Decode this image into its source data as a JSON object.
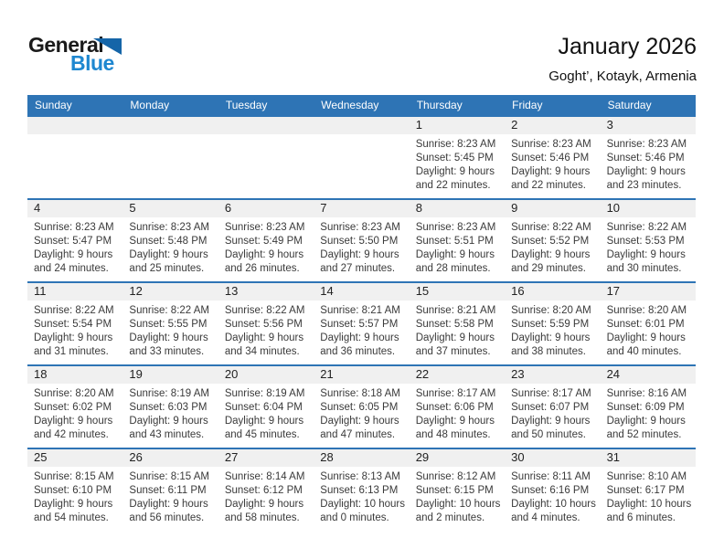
{
  "logo": {
    "part1": "General",
    "part2": "Blue"
  },
  "header": {
    "title": "January 2026",
    "subtitle": "Goght’, Kotayk, Armenia"
  },
  "colors": {
    "header_blue": "#2E74B5",
    "row_separator_blue": "#2E74B5",
    "day_band_gray": "#F0F0F0",
    "logo_text_blue": "#1E87D0",
    "logo_triangle_blue": "#1565A8"
  },
  "calendar": {
    "weekdays": [
      "Sunday",
      "Monday",
      "Tuesday",
      "Wednesday",
      "Thursday",
      "Friday",
      "Saturday"
    ],
    "weeks": [
      [
        {},
        {},
        {},
        {},
        {
          "day": "1",
          "sunrise": "Sunrise: 8:23 AM",
          "sunset": "Sunset: 5:45 PM",
          "daylight1": "Daylight: 9 hours",
          "daylight2": "and 22 minutes."
        },
        {
          "day": "2",
          "sunrise": "Sunrise: 8:23 AM",
          "sunset": "Sunset: 5:46 PM",
          "daylight1": "Daylight: 9 hours",
          "daylight2": "and 22 minutes."
        },
        {
          "day": "3",
          "sunrise": "Sunrise: 8:23 AM",
          "sunset": "Sunset: 5:46 PM",
          "daylight1": "Daylight: 9 hours",
          "daylight2": "and 23 minutes."
        }
      ],
      [
        {
          "day": "4",
          "sunrise": "Sunrise: 8:23 AM",
          "sunset": "Sunset: 5:47 PM",
          "daylight1": "Daylight: 9 hours",
          "daylight2": "and 24 minutes."
        },
        {
          "day": "5",
          "sunrise": "Sunrise: 8:23 AM",
          "sunset": "Sunset: 5:48 PM",
          "daylight1": "Daylight: 9 hours",
          "daylight2": "and 25 minutes."
        },
        {
          "day": "6",
          "sunrise": "Sunrise: 8:23 AM",
          "sunset": "Sunset: 5:49 PM",
          "daylight1": "Daylight: 9 hours",
          "daylight2": "and 26 minutes."
        },
        {
          "day": "7",
          "sunrise": "Sunrise: 8:23 AM",
          "sunset": "Sunset: 5:50 PM",
          "daylight1": "Daylight: 9 hours",
          "daylight2": "and 27 minutes."
        },
        {
          "day": "8",
          "sunrise": "Sunrise: 8:23 AM",
          "sunset": "Sunset: 5:51 PM",
          "daylight1": "Daylight: 9 hours",
          "daylight2": "and 28 minutes."
        },
        {
          "day": "9",
          "sunrise": "Sunrise: 8:22 AM",
          "sunset": "Sunset: 5:52 PM",
          "daylight1": "Daylight: 9 hours",
          "daylight2": "and 29 minutes."
        },
        {
          "day": "10",
          "sunrise": "Sunrise: 8:22 AM",
          "sunset": "Sunset: 5:53 PM",
          "daylight1": "Daylight: 9 hours",
          "daylight2": "and 30 minutes."
        }
      ],
      [
        {
          "day": "11",
          "sunrise": "Sunrise: 8:22 AM",
          "sunset": "Sunset: 5:54 PM",
          "daylight1": "Daylight: 9 hours",
          "daylight2": "and 31 minutes."
        },
        {
          "day": "12",
          "sunrise": "Sunrise: 8:22 AM",
          "sunset": "Sunset: 5:55 PM",
          "daylight1": "Daylight: 9 hours",
          "daylight2": "and 33 minutes."
        },
        {
          "day": "13",
          "sunrise": "Sunrise: 8:22 AM",
          "sunset": "Sunset: 5:56 PM",
          "daylight1": "Daylight: 9 hours",
          "daylight2": "and 34 minutes."
        },
        {
          "day": "14",
          "sunrise": "Sunrise: 8:21 AM",
          "sunset": "Sunset: 5:57 PM",
          "daylight1": "Daylight: 9 hours",
          "daylight2": "and 36 minutes."
        },
        {
          "day": "15",
          "sunrise": "Sunrise: 8:21 AM",
          "sunset": "Sunset: 5:58 PM",
          "daylight1": "Daylight: 9 hours",
          "daylight2": "and 37 minutes."
        },
        {
          "day": "16",
          "sunrise": "Sunrise: 8:20 AM",
          "sunset": "Sunset: 5:59 PM",
          "daylight1": "Daylight: 9 hours",
          "daylight2": "and 38 minutes."
        },
        {
          "day": "17",
          "sunrise": "Sunrise: 8:20 AM",
          "sunset": "Sunset: 6:01 PM",
          "daylight1": "Daylight: 9 hours",
          "daylight2": "and 40 minutes."
        }
      ],
      [
        {
          "day": "18",
          "sunrise": "Sunrise: 8:20 AM",
          "sunset": "Sunset: 6:02 PM",
          "daylight1": "Daylight: 9 hours",
          "daylight2": "and 42 minutes."
        },
        {
          "day": "19",
          "sunrise": "Sunrise: 8:19 AM",
          "sunset": "Sunset: 6:03 PM",
          "daylight1": "Daylight: 9 hours",
          "daylight2": "and 43 minutes."
        },
        {
          "day": "20",
          "sunrise": "Sunrise: 8:19 AM",
          "sunset": "Sunset: 6:04 PM",
          "daylight1": "Daylight: 9 hours",
          "daylight2": "and 45 minutes."
        },
        {
          "day": "21",
          "sunrise": "Sunrise: 8:18 AM",
          "sunset": "Sunset: 6:05 PM",
          "daylight1": "Daylight: 9 hours",
          "daylight2": "and 47 minutes."
        },
        {
          "day": "22",
          "sunrise": "Sunrise: 8:17 AM",
          "sunset": "Sunset: 6:06 PM",
          "daylight1": "Daylight: 9 hours",
          "daylight2": "and 48 minutes."
        },
        {
          "day": "23",
          "sunrise": "Sunrise: 8:17 AM",
          "sunset": "Sunset: 6:07 PM",
          "daylight1": "Daylight: 9 hours",
          "daylight2": "and 50 minutes."
        },
        {
          "day": "24",
          "sunrise": "Sunrise: 8:16 AM",
          "sunset": "Sunset: 6:09 PM",
          "daylight1": "Daylight: 9 hours",
          "daylight2": "and 52 minutes."
        }
      ],
      [
        {
          "day": "25",
          "sunrise": "Sunrise: 8:15 AM",
          "sunset": "Sunset: 6:10 PM",
          "daylight1": "Daylight: 9 hours",
          "daylight2": "and 54 minutes."
        },
        {
          "day": "26",
          "sunrise": "Sunrise: 8:15 AM",
          "sunset": "Sunset: 6:11 PM",
          "daylight1": "Daylight: 9 hours",
          "daylight2": "and 56 minutes."
        },
        {
          "day": "27",
          "sunrise": "Sunrise: 8:14 AM",
          "sunset": "Sunset: 6:12 PM",
          "daylight1": "Daylight: 9 hours",
          "daylight2": "and 58 minutes."
        },
        {
          "day": "28",
          "sunrise": "Sunrise: 8:13 AM",
          "sunset": "Sunset: 6:13 PM",
          "daylight1": "Daylight: 10 hours",
          "daylight2": "and 0 minutes."
        },
        {
          "day": "29",
          "sunrise": "Sunrise: 8:12 AM",
          "sunset": "Sunset: 6:15 PM",
          "daylight1": "Daylight: 10 hours",
          "daylight2": "and 2 minutes."
        },
        {
          "day": "30",
          "sunrise": "Sunrise: 8:11 AM",
          "sunset": "Sunset: 6:16 PM",
          "daylight1": "Daylight: 10 hours",
          "daylight2": "and 4 minutes."
        },
        {
          "day": "31",
          "sunrise": "Sunrise: 8:10 AM",
          "sunset": "Sunset: 6:17 PM",
          "daylight1": "Daylight: 10 hours",
          "daylight2": "and 6 minutes."
        }
      ]
    ]
  }
}
